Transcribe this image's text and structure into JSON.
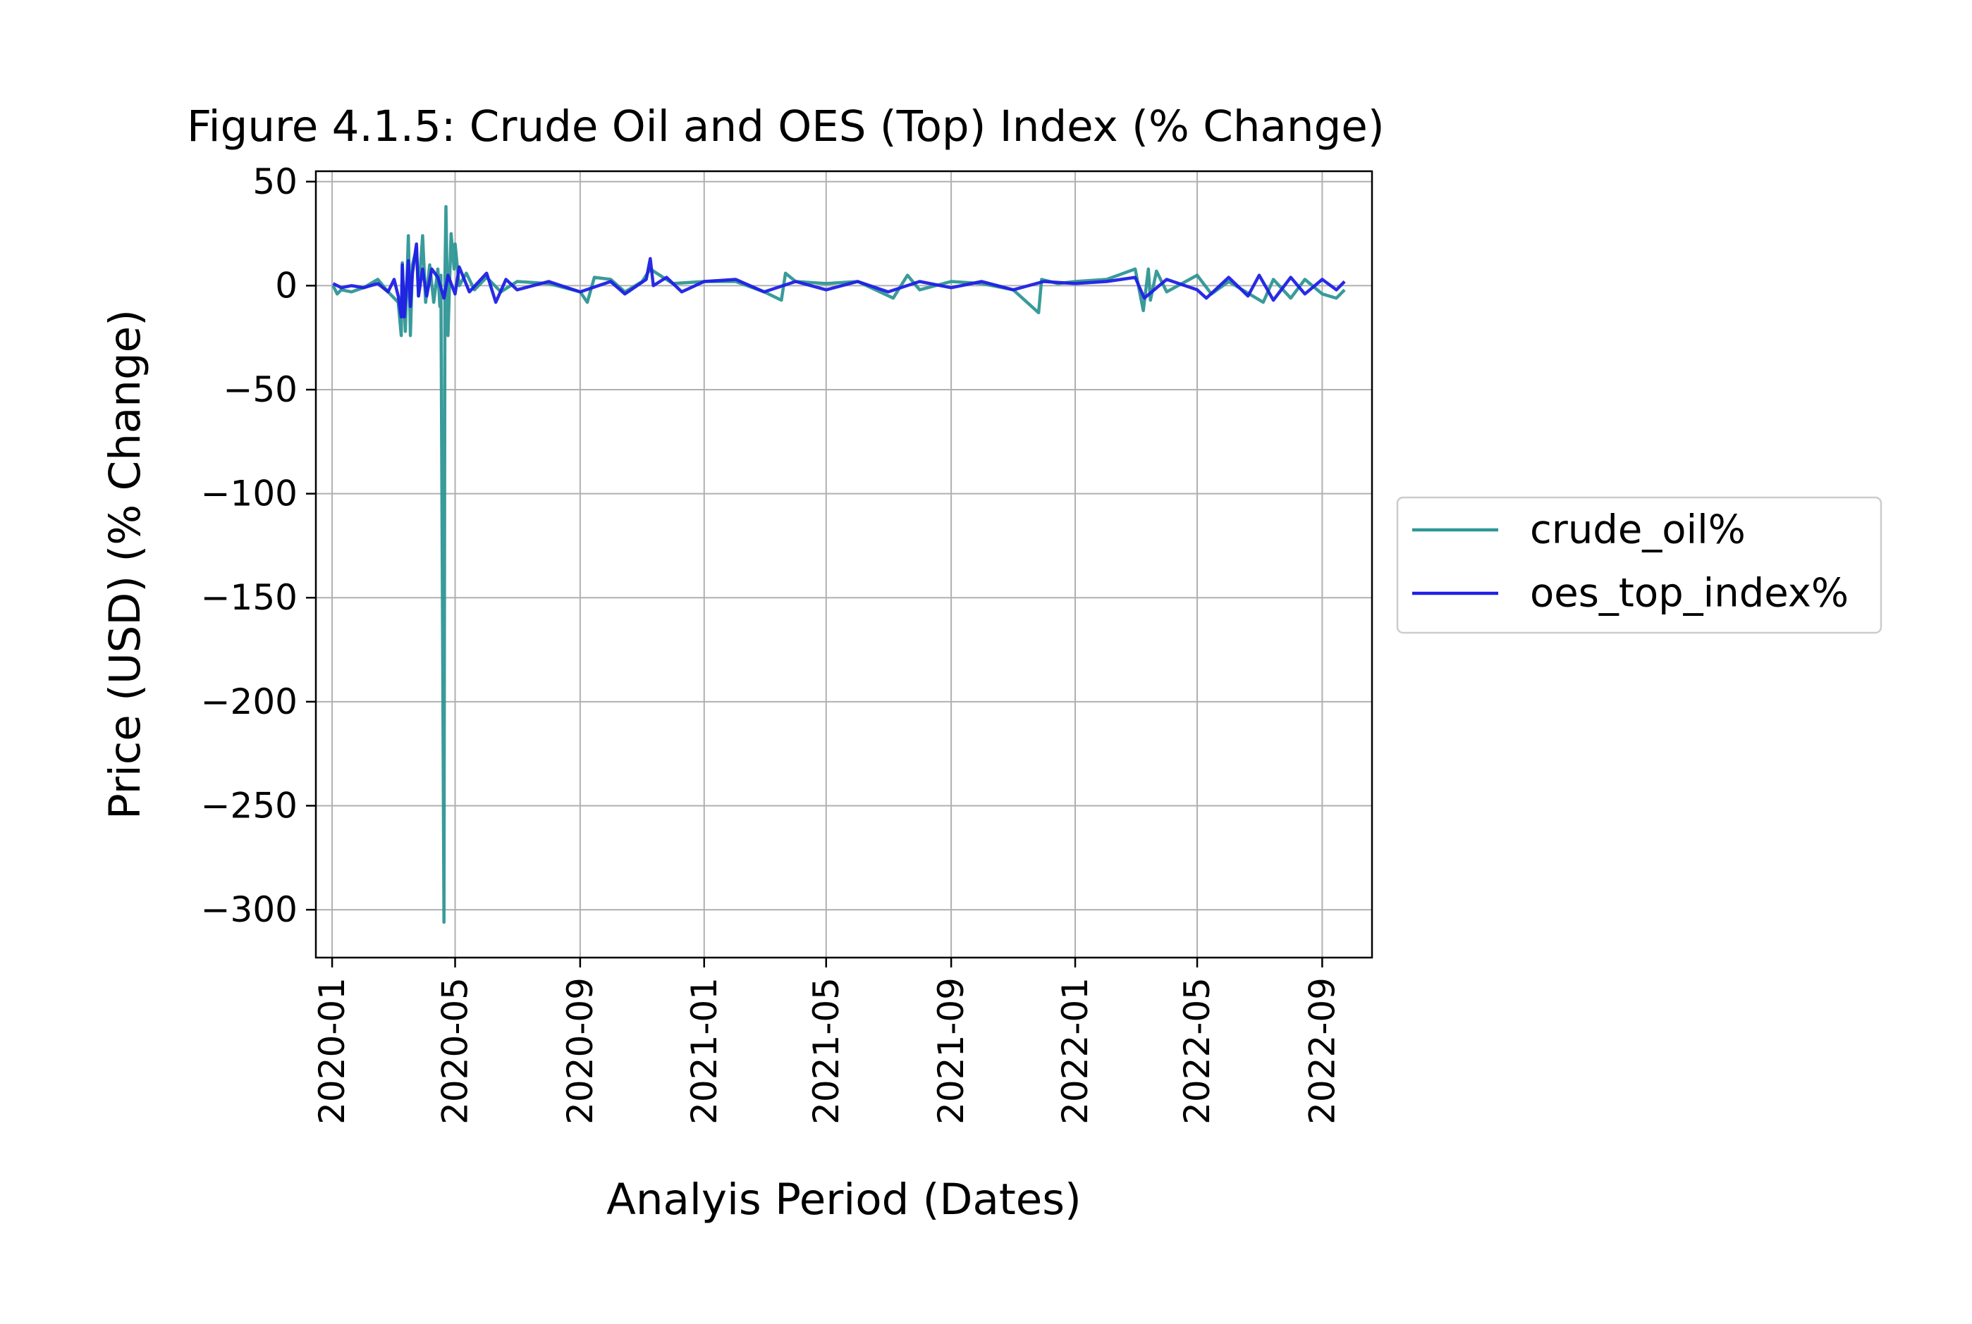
{
  "chart_data": {
    "type": "line",
    "title": "Figure 4.1.5: Crude Oil and OES (Top) Index (% Change)",
    "xlabel": "Analyis Period (Dates)",
    "ylabel": "Price (USD) (% Change)",
    "x_ticks": [
      "2020-01",
      "2020-05",
      "2020-09",
      "2021-01",
      "2021-05",
      "2021-09",
      "2022-01",
      "2022-05",
      "2022-09"
    ],
    "y_ticks": [
      "50",
      "0",
      "−50",
      "−100",
      "−150",
      "−200",
      "−250",
      "−300"
    ],
    "xlim": [
      "2019-12-16",
      "2022-10-20"
    ],
    "ylim": [
      -323,
      55
    ],
    "grid": true,
    "legend_position": "center-right, outside plot",
    "series": [
      {
        "name": "crude_oil%",
        "color": "#2e9695",
        "points": [
          [
            "2020-01-02",
            0
          ],
          [
            "2020-01-06",
            -4
          ],
          [
            "2020-01-10",
            -2
          ],
          [
            "2020-01-20",
            -3
          ],
          [
            "2020-02-01",
            -1
          ],
          [
            "2020-02-15",
            3
          ],
          [
            "2020-02-25",
            -3
          ],
          [
            "2020-03-06",
            -8
          ],
          [
            "2020-03-09",
            -24
          ],
          [
            "2020-03-10",
            11
          ],
          [
            "2020-03-13",
            -22
          ],
          [
            "2020-03-16",
            24
          ],
          [
            "2020-03-18",
            -24
          ],
          [
            "2020-03-20",
            10
          ],
          [
            "2020-03-24",
            18
          ],
          [
            "2020-03-26",
            -5
          ],
          [
            "2020-03-30",
            24
          ],
          [
            "2020-04-02",
            -8
          ],
          [
            "2020-04-06",
            10
          ],
          [
            "2020-04-10",
            -8
          ],
          [
            "2020-04-14",
            8
          ],
          [
            "2020-04-16",
            -10
          ],
          [
            "2020-04-17",
            5
          ],
          [
            "2020-04-20",
            -306
          ],
          [
            "2020-04-21",
            5
          ],
          [
            "2020-04-22",
            38
          ],
          [
            "2020-04-24",
            -24
          ],
          [
            "2020-04-27",
            25
          ],
          [
            "2020-04-30",
            8
          ],
          [
            "2020-05-01",
            20
          ],
          [
            "2020-05-05",
            0
          ],
          [
            "2020-05-12",
            6
          ],
          [
            "2020-05-20",
            -2
          ],
          [
            "2020-06-01",
            4
          ],
          [
            "2020-06-15",
            -3
          ],
          [
            "2020-07-01",
            2
          ],
          [
            "2020-08-01",
            1
          ],
          [
            "2020-09-01",
            -3
          ],
          [
            "2020-09-08",
            -8
          ],
          [
            "2020-09-15",
            4
          ],
          [
            "2020-10-01",
            3
          ],
          [
            "2020-10-15",
            -3
          ],
          [
            "2020-11-01",
            2
          ],
          [
            "2020-11-09",
            8
          ],
          [
            "2020-12-01",
            1
          ],
          [
            "2021-01-01",
            2
          ],
          [
            "2021-02-01",
            2
          ],
          [
            "2021-03-01",
            -3
          ],
          [
            "2021-03-18",
            -7
          ],
          [
            "2021-03-22",
            6
          ],
          [
            "2021-04-01",
            2
          ],
          [
            "2021-05-01",
            1
          ],
          [
            "2021-06-01",
            2
          ],
          [
            "2021-07-06",
            -6
          ],
          [
            "2021-07-20",
            5
          ],
          [
            "2021-08-01",
            -2
          ],
          [
            "2021-09-01",
            2
          ],
          [
            "2021-10-01",
            1
          ],
          [
            "2021-11-01",
            -2
          ],
          [
            "2021-11-26",
            -13
          ],
          [
            "2021-11-29",
            3
          ],
          [
            "2021-12-15",
            1
          ],
          [
            "2022-01-01",
            2
          ],
          [
            "2022-02-01",
            3
          ],
          [
            "2022-03-01",
            8
          ],
          [
            "2022-03-09",
            -12
          ],
          [
            "2022-03-14",
            8
          ],
          [
            "2022-03-16",
            -7
          ],
          [
            "2022-03-22",
            7
          ],
          [
            "2022-04-01",
            -3
          ],
          [
            "2022-05-01",
            5
          ],
          [
            "2022-05-15",
            -4
          ],
          [
            "2022-06-01",
            2
          ],
          [
            "2022-07-05",
            -8
          ],
          [
            "2022-07-15",
            3
          ],
          [
            "2022-08-01",
            -6
          ],
          [
            "2022-08-15",
            3
          ],
          [
            "2022-09-01",
            -4
          ],
          [
            "2022-09-15",
            -6
          ],
          [
            "2022-09-23",
            -2
          ]
        ]
      },
      {
        "name": "oes_top_index%",
        "color": "#1f1fe6",
        "points": [
          [
            "2020-01-02",
            1
          ],
          [
            "2020-01-10",
            -1
          ],
          [
            "2020-01-20",
            0
          ],
          [
            "2020-02-01",
            -1
          ],
          [
            "2020-02-15",
            1
          ],
          [
            "2020-02-25",
            -3
          ],
          [
            "2020-03-02",
            3
          ],
          [
            "2020-03-06",
            -5
          ],
          [
            "2020-03-09",
            -15
          ],
          [
            "2020-03-10",
            10
          ],
          [
            "2020-03-12",
            -15
          ],
          [
            "2020-03-16",
            12
          ],
          [
            "2020-03-18",
            -10
          ],
          [
            "2020-03-20",
            6
          ],
          [
            "2020-03-24",
            20
          ],
          [
            "2020-03-26",
            -5
          ],
          [
            "2020-03-30",
            8
          ],
          [
            "2020-04-03",
            -5
          ],
          [
            "2020-04-08",
            8
          ],
          [
            "2020-04-14",
            4
          ],
          [
            "2020-04-20",
            -6
          ],
          [
            "2020-04-24",
            5
          ],
          [
            "2020-05-01",
            -4
          ],
          [
            "2020-05-05",
            9
          ],
          [
            "2020-05-15",
            -3
          ],
          [
            "2020-06-01",
            6
          ],
          [
            "2020-06-10",
            -8
          ],
          [
            "2020-06-20",
            3
          ],
          [
            "2020-07-01",
            -2
          ],
          [
            "2020-08-01",
            2
          ],
          [
            "2020-09-01",
            -3
          ],
          [
            "2020-10-01",
            2
          ],
          [
            "2020-10-15",
            -4
          ],
          [
            "2020-11-05",
            3
          ],
          [
            "2020-11-09",
            13
          ],
          [
            "2020-11-12",
            0
          ],
          [
            "2020-11-25",
            4
          ],
          [
            "2020-12-10",
            -3
          ],
          [
            "2021-01-01",
            2
          ],
          [
            "2021-02-01",
            3
          ],
          [
            "2021-03-01",
            -3
          ],
          [
            "2021-04-01",
            2
          ],
          [
            "2021-05-01",
            -2
          ],
          [
            "2021-06-01",
            2
          ],
          [
            "2021-07-01",
            -3
          ],
          [
            "2021-08-01",
            2
          ],
          [
            "2021-09-01",
            -1
          ],
          [
            "2021-10-01",
            2
          ],
          [
            "2021-11-01",
            -2
          ],
          [
            "2021-12-01",
            2
          ],
          [
            "2022-01-01",
            1
          ],
          [
            "2022-02-01",
            2
          ],
          [
            "2022-03-01",
            4
          ],
          [
            "2022-03-10",
            -6
          ],
          [
            "2022-04-01",
            3
          ],
          [
            "2022-05-01",
            -2
          ],
          [
            "2022-05-10",
            -6
          ],
          [
            "2022-06-01",
            4
          ],
          [
            "2022-06-20",
            -5
          ],
          [
            "2022-07-01",
            5
          ],
          [
            "2022-07-15",
            -7
          ],
          [
            "2022-08-01",
            4
          ],
          [
            "2022-08-15",
            -4
          ],
          [
            "2022-09-01",
            3
          ],
          [
            "2022-09-15",
            -2
          ],
          [
            "2022-09-23",
            2
          ]
        ]
      }
    ]
  }
}
